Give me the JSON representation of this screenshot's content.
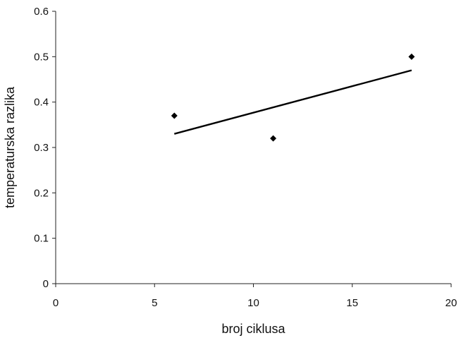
{
  "chart_data": {
    "type": "scatter",
    "xlabel": "broj ciklusa",
    "ylabel": "temperaturska razlika",
    "xlim": [
      0,
      20
    ],
    "ylim": [
      0,
      0.6
    ],
    "x_ticks": [
      0,
      5,
      10,
      15,
      20
    ],
    "x_tick_labels": [
      "0",
      "5",
      "10",
      "15",
      "20"
    ],
    "y_ticks": [
      0,
      0.1,
      0.2,
      0.3,
      0.4,
      0.5,
      0.6
    ],
    "y_tick_labels": [
      "0",
      "0.1",
      "0.2",
      "0.3",
      "0.4",
      "0.5",
      "0.6"
    ],
    "grid": false,
    "legend": "none",
    "marker": "diamond",
    "series": [
      {
        "points": [
          {
            "x": 6,
            "y": 0.37
          },
          {
            "x": 11,
            "y": 0.32
          },
          {
            "x": 18,
            "y": 0.5
          }
        ]
      }
    ],
    "trendline": {
      "type": "linear",
      "from": {
        "x": 6,
        "y": 0.33
      },
      "to": {
        "x": 18,
        "y": 0.47
      }
    },
    "colors": {
      "marker": "#000000",
      "line": "#000000"
    }
  }
}
